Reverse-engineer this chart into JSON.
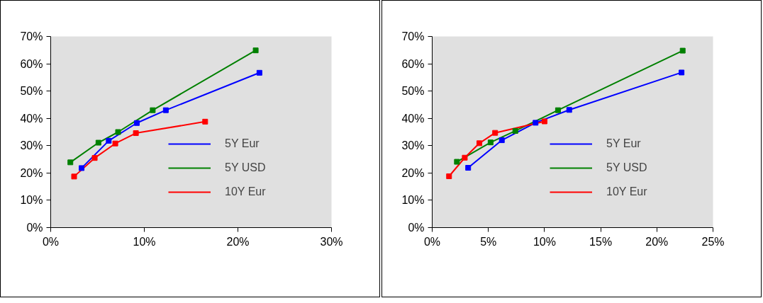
{
  "chart_data": [
    {
      "type": "line",
      "xlim": [
        0,
        30
      ],
      "ylim": [
        0,
        70
      ],
      "xticks": [
        {
          "value": 0,
          "label": "0%"
        },
        {
          "value": 10,
          "label": "10%"
        },
        {
          "value": 20,
          "label": "20%"
        },
        {
          "value": 30,
          "label": "30%"
        }
      ],
      "yticks": [
        {
          "value": 0,
          "label": "0%"
        },
        {
          "value": 10,
          "label": "10%"
        },
        {
          "value": 20,
          "label": "20%"
        },
        {
          "value": 30,
          "label": "30%"
        },
        {
          "value": 40,
          "label": "40%"
        },
        {
          "value": 50,
          "label": "50%"
        },
        {
          "value": 60,
          "label": "60%"
        },
        {
          "value": 70,
          "label": "70%"
        }
      ],
      "legend": "right",
      "marker": "square",
      "series": [
        {
          "name": "5Y Eur",
          "color": "#0000ff",
          "x": [
            3.3,
            6.2,
            9.2,
            12.3,
            22.3
          ],
          "values": [
            21.8,
            31.8,
            38.3,
            43,
            56.7
          ]
        },
        {
          "name": "5Y USD",
          "color": "#008000",
          "x": [
            2.1,
            5.1,
            7.2,
            10.9,
            21.9
          ],
          "values": [
            23.9,
            31.1,
            35,
            43,
            64.9
          ]
        },
        {
          "name": "10Y Eur",
          "color": "#ff0000",
          "x": [
            2.5,
            4.7,
            6.9,
            9.1,
            16.5
          ],
          "values": [
            18.7,
            25.5,
            30.8,
            34.6,
            38.8
          ]
        }
      ]
    },
    {
      "type": "line",
      "xlim": [
        0,
        25
      ],
      "ylim": [
        0,
        70
      ],
      "xticks": [
        {
          "value": 0,
          "label": "0%"
        },
        {
          "value": 5,
          "label": "5%"
        },
        {
          "value": 10,
          "label": "10%"
        },
        {
          "value": 15,
          "label": "15%"
        },
        {
          "value": 20,
          "label": "20%"
        },
        {
          "value": 25,
          "label": "25%"
        }
      ],
      "yticks": [
        {
          "value": 0,
          "label": "0%"
        },
        {
          "value": 10,
          "label": "10%"
        },
        {
          "value": 20,
          "label": "20%"
        },
        {
          "value": 30,
          "label": "30%"
        },
        {
          "value": 40,
          "label": "40%"
        },
        {
          "value": 50,
          "label": "50%"
        },
        {
          "value": 60,
          "label": "60%"
        },
        {
          "value": 70,
          "label": "70%"
        }
      ],
      "legend": "right",
      "marker": "square",
      "series": [
        {
          "name": "5Y Eur",
          "color": "#0000ff",
          "x": [
            3.2,
            6.2,
            9.2,
            12.2,
            22.2
          ],
          "values": [
            21.9,
            32.0,
            38.4,
            43.1,
            56.8
          ]
        },
        {
          "name": "5Y USD",
          "color": "#008000",
          "x": [
            2.2,
            5.2,
            7.4,
            11.2,
            22.3
          ],
          "values": [
            24.1,
            31.2,
            35.4,
            43,
            64.8
          ]
        },
        {
          "name": "10Y Eur",
          "color": "#ff0000",
          "x": [
            1.5,
            2.9,
            4.2,
            5.6,
            10.0
          ],
          "values": [
            18.8,
            25.6,
            30.9,
            34.7,
            38.9
          ]
        }
      ]
    }
  ]
}
